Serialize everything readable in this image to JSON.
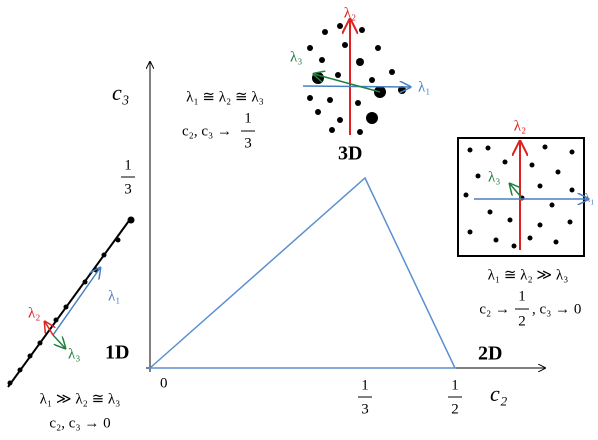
{
  "axes": {
    "y_label": "c₃",
    "x_label": "c₂",
    "origin": "0",
    "x_ticks": [
      {
        "num": "1",
        "den": "3"
      },
      {
        "num": "1",
        "den": "2"
      }
    ],
    "y_tick": {
      "num": "1",
      "den": "3"
    }
  },
  "regions": [
    {
      "label": "1D",
      "condition": "λ₁ ≫ λ₂ ≅ λ₃",
      "limit": "c₂, c₃ → 0",
      "eigen": [
        "λ₁",
        "λ₂",
        "λ₃"
      ]
    },
    {
      "label": "2D",
      "condition": "λ₁ ≅ λ₂ ≫ λ₃",
      "limit_prefix": "c₂ →",
      "limit_frac": {
        "num": "1",
        "den": "2"
      },
      "limit_suffix": ", c₃ → 0",
      "eigen": [
        "λ₁",
        "λ₂",
        "λ₃"
      ]
    },
    {
      "label": "3D",
      "condition": "λ₁ ≅ λ₂ ≅ λ₃",
      "limit_prefix": "c₂, c₃ →",
      "limit_frac": {
        "num": "1",
        "den": "3"
      },
      "eigen": [
        "λ₁",
        "λ₂",
        "λ₃"
      ]
    }
  ]
}
